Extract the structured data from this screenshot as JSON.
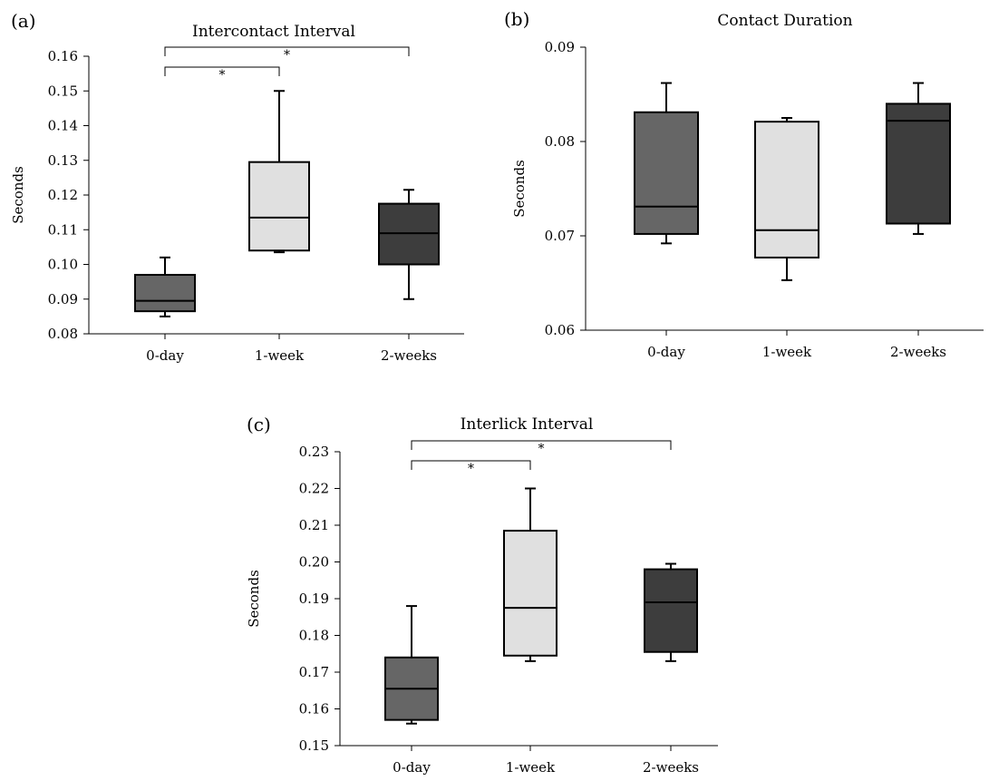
{
  "chart_data": [
    {
      "type": "box",
      "panel": "(a)",
      "title": "Intercontact Interval",
      "xlabel": "",
      "ylabel": "Seconds",
      "ylim": [
        0.08,
        0.16
      ],
      "yticks": [
        "0.08",
        "0.09",
        "0.10",
        "0.11",
        "0.12",
        "0.13",
        "0.14",
        "0.15",
        "0.16"
      ],
      "categories": [
        "0-day",
        "1-week",
        "2-weeks"
      ],
      "boxes": [
        {
          "min": 0.085,
          "q1": 0.0865,
          "median": 0.0895,
          "q3": 0.097,
          "max": 0.102
        },
        {
          "min": 0.1035,
          "q1": 0.104,
          "median": 0.1135,
          "q3": 0.1295,
          "max": 0.15
        },
        {
          "min": 0.09,
          "q1": 0.1,
          "median": 0.109,
          "q3": 0.1175,
          "max": 0.1215
        }
      ],
      "fills": [
        "#666666",
        "#e0e0e0",
        "#3d3d3d"
      ],
      "significance": [
        {
          "from": 0,
          "to": 1,
          "label": "*"
        },
        {
          "from": 0,
          "to": 2,
          "label": "*"
        }
      ]
    },
    {
      "type": "box",
      "panel": "(b)",
      "title": "Contact Duration",
      "xlabel": "",
      "ylabel": "Seconds",
      "ylim": [
        0.06,
        0.09
      ],
      "yticks": [
        "0.06",
        "0.07",
        "0.08",
        "0.09"
      ],
      "categories": [
        "0-day",
        "1-week",
        "2-weeks"
      ],
      "boxes": [
        {
          "min": 0.0692,
          "q1": 0.0702,
          "median": 0.0731,
          "q3": 0.0831,
          "max": 0.0862
        },
        {
          "min": 0.0653,
          "q1": 0.0677,
          "median": 0.0706,
          "q3": 0.0821,
          "max": 0.0825
        },
        {
          "min": 0.0702,
          "q1": 0.0713,
          "median": 0.0822,
          "q3": 0.084,
          "max": 0.0862
        }
      ],
      "fills": [
        "#666666",
        "#e0e0e0",
        "#3d3d3d"
      ],
      "significance": []
    },
    {
      "type": "box",
      "panel": "(c)",
      "title": "Interlick Interval",
      "xlabel": "",
      "ylabel": "Seconds",
      "ylim": [
        0.15,
        0.23
      ],
      "yticks": [
        "0.15",
        "0.16",
        "0.17",
        "0.18",
        "0.19",
        "0.20",
        "0.21",
        "0.22",
        "0.23"
      ],
      "categories": [
        "0-day",
        "1-week",
        "2-weeks"
      ],
      "boxes": [
        {
          "min": 0.156,
          "q1": 0.157,
          "median": 0.1655,
          "q3": 0.174,
          "max": 0.188
        },
        {
          "min": 0.173,
          "q1": 0.1745,
          "median": 0.1875,
          "q3": 0.2085,
          "max": 0.22
        },
        {
          "min": 0.173,
          "q1": 0.1755,
          "median": 0.189,
          "q3": 0.198,
          "max": 0.1995
        }
      ],
      "fills": [
        "#666666",
        "#e0e0e0",
        "#3d3d3d"
      ],
      "significance": [
        {
          "from": 0,
          "to": 1,
          "label": "*"
        },
        {
          "from": 0,
          "to": 2,
          "label": "*"
        }
      ]
    }
  ]
}
